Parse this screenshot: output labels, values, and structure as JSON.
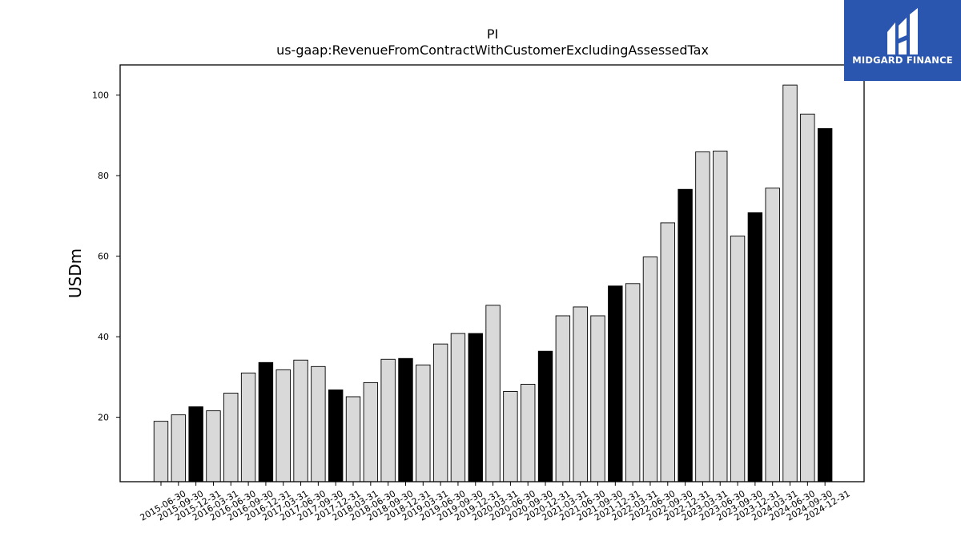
{
  "chart_data": {
    "type": "bar",
    "title": "PI",
    "subtitle": "us-gaap:RevenueFromContractWithCustomerExcludingAssessedTax",
    "ylabel": "USDm",
    "xlabel": "",
    "ylim": [
      4,
      107.5
    ],
    "yticks": [
      20,
      40,
      60,
      80,
      100
    ],
    "grid": false,
    "categories": [
      "2015-06-30",
      "2015-09-30",
      "2015-12-31",
      "2016-03-31",
      "2016-06-30",
      "2016-09-30",
      "2016-12-31",
      "2017-03-31",
      "2017-06-30",
      "2017-09-30",
      "2017-12-31",
      "2018-03-31",
      "2018-06-30",
      "2018-09-30",
      "2018-12-31",
      "2019-03-31",
      "2019-06-30",
      "2019-09-30",
      "2019-12-31",
      "2020-03-31",
      "2020-06-30",
      "2020-09-30",
      "2020-12-31",
      "2021-03-31",
      "2021-06-30",
      "2021-09-30",
      "2021-12-31",
      "2022-03-31",
      "2022-06-30",
      "2022-09-30",
      "2022-12-31",
      "2023-03-31",
      "2023-06-30",
      "2023-09-30",
      "2023-12-31",
      "2024-03-31",
      "2024-06-30",
      "2024-09-30",
      "2024-12-31"
    ],
    "values": [
      19.0,
      20.6,
      22.6,
      21.6,
      26.0,
      31.0,
      33.6,
      31.8,
      34.2,
      32.6,
      26.8,
      25.1,
      28.6,
      34.4,
      34.6,
      33.0,
      38.2,
      40.8,
      40.8,
      47.8,
      26.4,
      28.2,
      36.4,
      45.2,
      47.4,
      45.2,
      52.6,
      53.2,
      59.8,
      68.3,
      76.6,
      85.9,
      86.1,
      65.0,
      70.8,
      76.9,
      102.5,
      95.3,
      91.7
    ],
    "highlight": [
      false,
      false,
      true,
      false,
      false,
      false,
      true,
      false,
      false,
      false,
      true,
      false,
      false,
      false,
      true,
      false,
      false,
      false,
      true,
      false,
      false,
      false,
      true,
      false,
      false,
      false,
      true,
      false,
      false,
      false,
      true,
      false,
      false,
      false,
      true,
      false,
      false,
      false,
      true
    ],
    "colors": {
      "bar": "#d9d9d9",
      "highlight": "#000000",
      "edge": "#000000"
    }
  },
  "logo": {
    "text": "MIDGARD FINANCE",
    "background": "#2a56b0"
  }
}
